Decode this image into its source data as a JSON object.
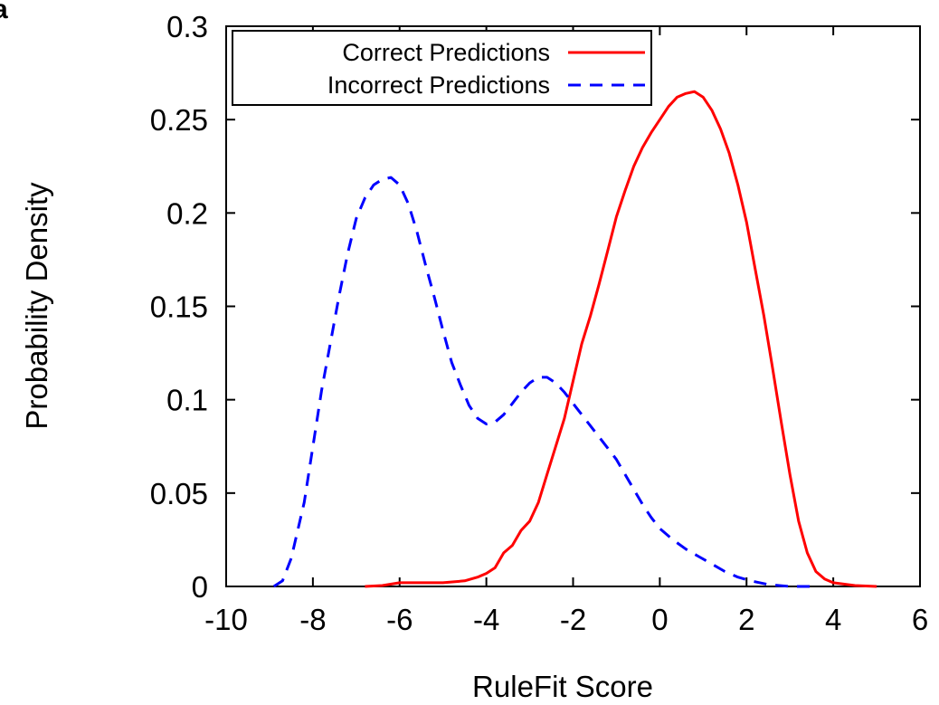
{
  "corner_mark": "a",
  "chart_data": {
    "type": "line",
    "xlabel": "RuleFit Score",
    "ylabel": "Probability Density",
    "xlim": [
      -10,
      6
    ],
    "ylim": [
      0,
      0.3
    ],
    "x_ticks": [
      "-10",
      "-8",
      "-6",
      "-4",
      "-2",
      "0",
      "2",
      "4",
      "6"
    ],
    "y_ticks": [
      "0",
      "0.05",
      "0.1",
      "0.15",
      "0.2",
      "0.25",
      "0.3"
    ],
    "grid": false,
    "legend_position": "top-left",
    "series": [
      {
        "name": "Correct Predictions",
        "color": "#ff0000",
        "style": "solid",
        "points": [
          [
            -6.8,
            0.0
          ],
          [
            -6.4,
            0.0005
          ],
          [
            -6.0,
            0.002
          ],
          [
            -5.5,
            0.002
          ],
          [
            -5.0,
            0.002
          ],
          [
            -4.5,
            0.003
          ],
          [
            -4.2,
            0.005
          ],
          [
            -4.0,
            0.007
          ],
          [
            -3.8,
            0.01
          ],
          [
            -3.6,
            0.018
          ],
          [
            -3.4,
            0.022
          ],
          [
            -3.2,
            0.03
          ],
          [
            -3.0,
            0.035
          ],
          [
            -2.8,
            0.045
          ],
          [
            -2.6,
            0.06
          ],
          [
            -2.4,
            0.075
          ],
          [
            -2.2,
            0.09
          ],
          [
            -2.0,
            0.11
          ],
          [
            -1.8,
            0.13
          ],
          [
            -1.6,
            0.145
          ],
          [
            -1.4,
            0.162
          ],
          [
            -1.2,
            0.18
          ],
          [
            -1.0,
            0.198
          ],
          [
            -0.8,
            0.212
          ],
          [
            -0.6,
            0.225
          ],
          [
            -0.4,
            0.235
          ],
          [
            -0.2,
            0.243
          ],
          [
            0.0,
            0.25
          ],
          [
            0.2,
            0.257
          ],
          [
            0.4,
            0.262
          ],
          [
            0.6,
            0.264
          ],
          [
            0.8,
            0.265
          ],
          [
            1.0,
            0.262
          ],
          [
            1.2,
            0.255
          ],
          [
            1.4,
            0.245
          ],
          [
            1.6,
            0.232
          ],
          [
            1.8,
            0.215
          ],
          [
            2.0,
            0.195
          ],
          [
            2.2,
            0.17
          ],
          [
            2.4,
            0.145
          ],
          [
            2.6,
            0.117
          ],
          [
            2.8,
            0.088
          ],
          [
            3.0,
            0.06
          ],
          [
            3.2,
            0.035
          ],
          [
            3.4,
            0.018
          ],
          [
            3.6,
            0.008
          ],
          [
            3.8,
            0.004
          ],
          [
            4.0,
            0.002
          ],
          [
            4.5,
            0.0005
          ],
          [
            5.0,
            0.0
          ]
        ]
      },
      {
        "name": "Incorrect Predictions",
        "color": "#0000ff",
        "style": "dashed",
        "points": [
          [
            -8.9,
            0.0
          ],
          [
            -8.7,
            0.003
          ],
          [
            -8.5,
            0.015
          ],
          [
            -8.2,
            0.045
          ],
          [
            -8.0,
            0.075
          ],
          [
            -7.8,
            0.105
          ],
          [
            -7.6,
            0.13
          ],
          [
            -7.4,
            0.155
          ],
          [
            -7.2,
            0.178
          ],
          [
            -7.0,
            0.197
          ],
          [
            -6.8,
            0.208
          ],
          [
            -6.6,
            0.215
          ],
          [
            -6.4,
            0.218
          ],
          [
            -6.2,
            0.219
          ],
          [
            -6.0,
            0.215
          ],
          [
            -5.8,
            0.205
          ],
          [
            -5.6,
            0.19
          ],
          [
            -5.4,
            0.172
          ],
          [
            -5.2,
            0.155
          ],
          [
            -5.0,
            0.137
          ],
          [
            -4.8,
            0.12
          ],
          [
            -4.6,
            0.108
          ],
          [
            -4.4,
            0.097
          ],
          [
            -4.2,
            0.09
          ],
          [
            -4.0,
            0.087
          ],
          [
            -3.8,
            0.088
          ],
          [
            -3.6,
            0.092
          ],
          [
            -3.4,
            0.098
          ],
          [
            -3.2,
            0.104
          ],
          [
            -3.0,
            0.109
          ],
          [
            -2.8,
            0.112
          ],
          [
            -2.6,
            0.112
          ],
          [
            -2.4,
            0.109
          ],
          [
            -2.2,
            0.104
          ],
          [
            -2.0,
            0.098
          ],
          [
            -1.8,
            0.092
          ],
          [
            -1.6,
            0.086
          ],
          [
            -1.4,
            0.08
          ],
          [
            -1.2,
            0.074
          ],
          [
            -1.0,
            0.068
          ],
          [
            -0.8,
            0.06
          ],
          [
            -0.6,
            0.052
          ],
          [
            -0.4,
            0.044
          ],
          [
            -0.2,
            0.037
          ],
          [
            0.0,
            0.031
          ],
          [
            0.3,
            0.025
          ],
          [
            0.6,
            0.02
          ],
          [
            0.9,
            0.016
          ],
          [
            1.2,
            0.012
          ],
          [
            1.5,
            0.008
          ],
          [
            1.8,
            0.005
          ],
          [
            2.1,
            0.003
          ],
          [
            2.5,
            0.001
          ],
          [
            3.0,
            0.0
          ],
          [
            3.5,
            0.0
          ]
        ]
      }
    ]
  }
}
